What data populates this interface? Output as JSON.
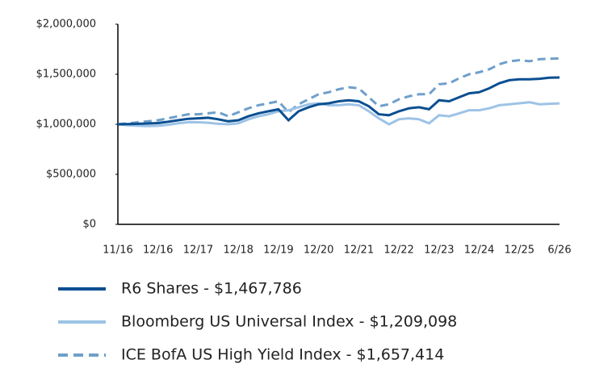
{
  "chart_data": {
    "type": "line",
    "categories": [
      "11/16",
      null,
      null,
      null,
      "12/16",
      null,
      null,
      null,
      "12/17",
      null,
      null,
      null,
      "12/18",
      null,
      null,
      null,
      "12/19",
      null,
      null,
      null,
      "12/20",
      null,
      null,
      null,
      "12/21",
      null,
      null,
      null,
      "12/22",
      null,
      null,
      null,
      "12/23",
      null,
      null,
      null,
      "12/24",
      null,
      null,
      null,
      "12/25",
      null,
      null,
      null,
      "6/26"
    ],
    "series": [
      {
        "name": "R6 Shares - $1,467,786",
        "color": "#0b4f91",
        "dash": false,
        "values": [
          1000000,
          1002000,
          1005000,
          1008000,
          1012000,
          1025000,
          1040000,
          1055000,
          1060000,
          1065000,
          1050000,
          1030000,
          1040000,
          1080000,
          1110000,
          1130000,
          1150000,
          1040000,
          1130000,
          1170000,
          1200000,
          1210000,
          1230000,
          1240000,
          1230000,
          1180000,
          1100000,
          1090000,
          1130000,
          1160000,
          1170000,
          1150000,
          1240000,
          1230000,
          1270000,
          1310000,
          1320000,
          1360000,
          1410000,
          1440000,
          1450000,
          1450000,
          1455000,
          1465000,
          1467786
        ]
      },
      {
        "name": "Bloomberg US Universal Index - $1,209,098",
        "color": "#9dc3e6",
        "dash": false,
        "values": [
          1000000,
          990000,
          985000,
          982000,
          985000,
          995000,
          1010000,
          1020000,
          1020000,
          1015000,
          1005000,
          1000000,
          1010000,
          1050000,
          1080000,
          1100000,
          1130000,
          1140000,
          1170000,
          1200000,
          1210000,
          1190000,
          1190000,
          1200000,
          1190000,
          1130000,
          1060000,
          1000000,
          1050000,
          1060000,
          1050000,
          1010000,
          1090000,
          1080000,
          1110000,
          1140000,
          1140000,
          1160000,
          1190000,
          1200000,
          1210000,
          1220000,
          1200000,
          1205000,
          1209098
        ]
      },
      {
        "name": "ICE BofA US High Yield Index - $1,657,414",
        "color": "#6f9fca",
        "dash": true,
        "values": [
          1000000,
          1010000,
          1020000,
          1030000,
          1040000,
          1060000,
          1080000,
          1100000,
          1100000,
          1110000,
          1120000,
          1080000,
          1120000,
          1160000,
          1190000,
          1210000,
          1230000,
          1120000,
          1200000,
          1250000,
          1300000,
          1320000,
          1350000,
          1370000,
          1360000,
          1270000,
          1180000,
          1200000,
          1250000,
          1280000,
          1300000,
          1300000,
          1400000,
          1410000,
          1460000,
          1500000,
          1520000,
          1550000,
          1600000,
          1630000,
          1640000,
          1630000,
          1650000,
          1655000,
          1657414
        ]
      }
    ],
    "ylim": [
      0,
      2000000
    ],
    "yticks": [
      {
        "value": 0,
        "label": "$0"
      },
      {
        "value": 500000,
        "label": "$500,000"
      },
      {
        "value": 1000000,
        "label": "$1,000,000"
      },
      {
        "value": 1500000,
        "label": "$1,500,000"
      },
      {
        "value": 2000000,
        "label": "$2,000,000"
      }
    ],
    "grid": false,
    "legend": "bottom"
  }
}
